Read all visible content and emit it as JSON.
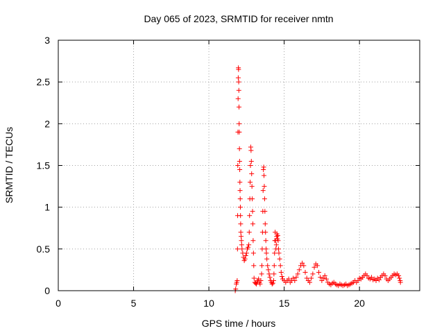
{
  "chart_data": {
    "type": "scatter",
    "title": "Day 065 of 2023, SRMTID for receiver nmtn",
    "xlabel": "GPS time / hours",
    "ylabel": "SRMTID / TECUs",
    "xlim": [
      0,
      24
    ],
    "ylim": [
      0,
      3
    ],
    "xticks": [
      0,
      5,
      10,
      15,
      20
    ],
    "yticks": [
      0,
      0.5,
      1,
      1.5,
      2,
      2.5,
      3
    ],
    "xtick_labels": [
      "0",
      "5",
      "10",
      "15",
      "20"
    ],
    "ytick_labels": [
      "0",
      "0.5",
      "1",
      "1.5",
      "2",
      "2.5",
      "3"
    ],
    "grid": true,
    "marker": "+",
    "color": "#ff0000",
    "series": [
      {
        "points": [
          [
            11.75,
            0.0
          ],
          [
            11.78,
            0.02
          ],
          [
            11.82,
            0.08
          ],
          [
            11.85,
            0.1
          ],
          [
            11.88,
            0.12
          ],
          [
            11.9,
            0.5
          ],
          [
            11.91,
            0.9
          ],
          [
            11.92,
            1.5
          ],
          [
            11.93,
            1.9
          ],
          [
            11.94,
            2.3
          ],
          [
            11.95,
            2.55
          ],
          [
            11.96,
            2.67
          ],
          [
            11.97,
            2.65
          ],
          [
            11.98,
            2.5
          ],
          [
            11.99,
            2.4
          ],
          [
            12.0,
            2.2
          ],
          [
            12.01,
            2.0
          ],
          [
            12.02,
            1.9
          ],
          [
            12.03,
            1.7
          ],
          [
            12.04,
            1.55
          ],
          [
            12.05,
            1.45
          ],
          [
            12.06,
            1.3
          ],
          [
            12.07,
            1.2
          ],
          [
            12.08,
            1.1
          ],
          [
            12.09,
            1.0
          ],
          [
            12.1,
            0.9
          ],
          [
            12.11,
            0.8
          ],
          [
            12.12,
            0.7
          ],
          [
            12.14,
            0.65
          ],
          [
            12.16,
            0.6
          ],
          [
            12.18,
            0.55
          ],
          [
            12.2,
            0.5
          ],
          [
            12.25,
            0.45
          ],
          [
            12.3,
            0.4
          ],
          [
            12.35,
            0.36
          ],
          [
            12.4,
            0.38
          ],
          [
            12.45,
            0.42
          ],
          [
            12.5,
            0.45
          ],
          [
            12.55,
            0.5
          ],
          [
            12.6,
            0.52
          ],
          [
            12.65,
            0.55
          ],
          [
            12.68,
            0.7
          ],
          [
            12.7,
            0.9
          ],
          [
            12.72,
            1.1
          ],
          [
            12.74,
            1.3
          ],
          [
            12.76,
            1.5
          ],
          [
            12.78,
            1.72
          ],
          [
            12.8,
            1.68
          ],
          [
            12.82,
            1.55
          ],
          [
            12.84,
            1.4
          ],
          [
            12.86,
            1.25
          ],
          [
            12.88,
            1.1
          ],
          [
            12.9,
            0.95
          ],
          [
            12.92,
            0.8
          ],
          [
            12.94,
            0.6
          ],
          [
            12.96,
            0.45
          ],
          [
            12.98,
            0.3
          ],
          [
            13.0,
            0.15
          ],
          [
            13.05,
            0.1
          ],
          [
            13.1,
            0.09
          ],
          [
            13.15,
            0.08
          ],
          [
            13.2,
            0.1
          ],
          [
            13.25,
            0.12
          ],
          [
            13.3,
            0.14
          ],
          [
            13.35,
            0.1
          ],
          [
            13.4,
            0.08
          ],
          [
            13.45,
            0.12
          ],
          [
            13.5,
            0.2
          ],
          [
            13.52,
            0.3
          ],
          [
            13.54,
            0.5
          ],
          [
            13.56,
            0.7
          ],
          [
            13.58,
            0.95
          ],
          [
            13.6,
            1.2
          ],
          [
            13.62,
            1.45
          ],
          [
            13.64,
            1.48
          ],
          [
            13.66,
            1.38
          ],
          [
            13.68,
            1.25
          ],
          [
            13.7,
            1.1
          ],
          [
            13.72,
            0.95
          ],
          [
            13.74,
            0.8
          ],
          [
            13.76,
            0.7
          ],
          [
            13.78,
            0.6
          ],
          [
            13.8,
            0.5
          ],
          [
            13.82,
            0.45
          ],
          [
            13.85,
            0.38
          ],
          [
            13.9,
            0.3
          ],
          [
            13.95,
            0.25
          ],
          [
            14.0,
            0.2
          ],
          [
            14.05,
            0.16
          ],
          [
            14.1,
            0.12
          ],
          [
            14.15,
            0.1
          ],
          [
            14.2,
            0.08
          ],
          [
            14.25,
            0.09
          ],
          [
            14.3,
            0.12
          ],
          [
            14.32,
            0.2
          ],
          [
            14.34,
            0.3
          ],
          [
            14.36,
            0.45
          ],
          [
            14.38,
            0.6
          ],
          [
            14.4,
            0.7
          ],
          [
            14.42,
            0.6
          ],
          [
            14.45,
            0.5
          ],
          [
            14.48,
            0.55
          ],
          [
            14.5,
            0.65
          ],
          [
            14.52,
            0.68
          ],
          [
            14.55,
            0.62
          ],
          [
            14.58,
            0.66
          ],
          [
            14.6,
            0.6
          ],
          [
            14.62,
            0.5
          ],
          [
            14.65,
            0.45
          ],
          [
            14.7,
            0.38
          ],
          [
            14.75,
            0.3
          ],
          [
            14.8,
            0.22
          ],
          [
            14.85,
            0.17
          ],
          [
            14.9,
            0.14
          ],
          [
            15.0,
            0.12
          ],
          [
            15.1,
            0.1
          ],
          [
            15.2,
            0.12
          ],
          [
            15.3,
            0.14
          ],
          [
            15.4,
            0.1
          ],
          [
            15.5,
            0.12
          ],
          [
            15.6,
            0.15
          ],
          [
            15.7,
            0.12
          ],
          [
            15.8,
            0.16
          ],
          [
            15.9,
            0.2
          ],
          [
            16.0,
            0.25
          ],
          [
            16.1,
            0.3
          ],
          [
            16.2,
            0.33
          ],
          [
            16.3,
            0.3
          ],
          [
            16.4,
            0.22
          ],
          [
            16.5,
            0.15
          ],
          [
            16.6,
            0.12
          ],
          [
            16.7,
            0.1
          ],
          [
            16.8,
            0.15
          ],
          [
            16.9,
            0.2
          ],
          [
            17.0,
            0.28
          ],
          [
            17.1,
            0.32
          ],
          [
            17.2,
            0.3
          ],
          [
            17.3,
            0.22
          ],
          [
            17.4,
            0.16
          ],
          [
            17.5,
            0.12
          ],
          [
            17.6,
            0.15
          ],
          [
            17.7,
            0.18
          ],
          [
            17.8,
            0.14
          ],
          [
            17.9,
            0.1
          ],
          [
            18.0,
            0.08
          ],
          [
            18.1,
            0.07
          ],
          [
            18.2,
            0.09
          ],
          [
            18.3,
            0.1
          ],
          [
            18.4,
            0.08
          ],
          [
            18.5,
            0.07
          ],
          [
            18.6,
            0.06
          ],
          [
            18.7,
            0.08
          ],
          [
            18.8,
            0.07
          ],
          [
            18.9,
            0.06
          ],
          [
            19.0,
            0.07
          ],
          [
            19.1,
            0.08
          ],
          [
            19.2,
            0.06
          ],
          [
            19.3,
            0.07
          ],
          [
            19.4,
            0.08
          ],
          [
            19.5,
            0.09
          ],
          [
            19.6,
            0.1
          ],
          [
            19.7,
            0.12
          ],
          [
            19.8,
            0.1
          ],
          [
            19.9,
            0.12
          ],
          [
            20.0,
            0.15
          ],
          [
            20.1,
            0.14
          ],
          [
            20.2,
            0.16
          ],
          [
            20.3,
            0.18
          ],
          [
            20.4,
            0.2
          ],
          [
            20.5,
            0.18
          ],
          [
            20.6,
            0.15
          ],
          [
            20.7,
            0.14
          ],
          [
            20.8,
            0.16
          ],
          [
            20.9,
            0.13
          ],
          [
            21.0,
            0.14
          ],
          [
            21.1,
            0.12
          ],
          [
            21.2,
            0.15
          ],
          [
            21.3,
            0.13
          ],
          [
            21.4,
            0.16
          ],
          [
            21.5,
            0.18
          ],
          [
            21.6,
            0.2
          ],
          [
            21.7,
            0.18
          ],
          [
            21.8,
            0.14
          ],
          [
            21.9,
            0.12
          ],
          [
            22.0,
            0.14
          ],
          [
            22.1,
            0.16
          ],
          [
            22.2,
            0.18
          ],
          [
            22.3,
            0.2
          ],
          [
            22.4,
            0.19
          ],
          [
            22.5,
            0.2
          ],
          [
            22.6,
            0.18
          ],
          [
            22.65,
            0.15
          ],
          [
            22.7,
            0.12
          ],
          [
            22.72,
            0.1
          ]
        ]
      }
    ]
  }
}
